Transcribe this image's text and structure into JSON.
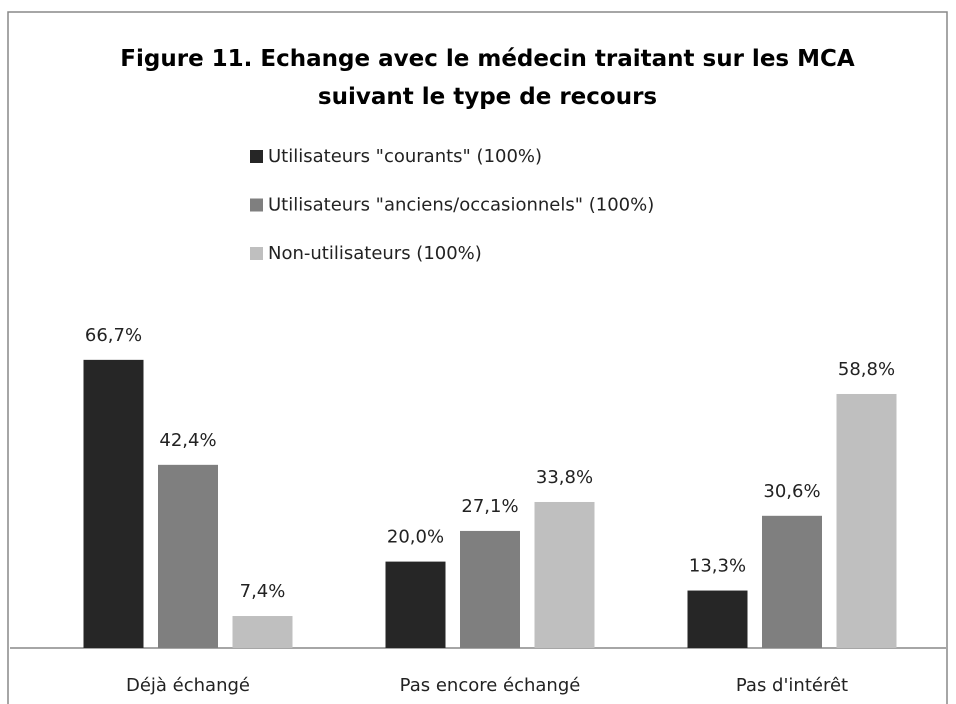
{
  "chart_data": {
    "type": "bar",
    "title": "Figure 11. Echange avec le médecin traitant sur les MCA suivant le type de recours",
    "categories": [
      "Déjà échangé",
      "Pas encore échangé",
      "Pas d'intérêt"
    ],
    "series": [
      {
        "name": "Utilisateurs \"courants\" (100%)",
        "color": "#262626",
        "values": [
          66.7,
          20.0,
          13.3
        ],
        "value_labels": [
          "66,7%",
          "20,0%",
          "13,3%"
        ]
      },
      {
        "name": "Utilisateurs \"anciens/occasionnels\" (100%)",
        "color": "#7f7f7f",
        "values": [
          42.4,
          27.1,
          30.6
        ],
        "value_labels": [
          "42,4%",
          "27,1%",
          "30,6%"
        ]
      },
      {
        "name": "Non-utilisateurs (100%)",
        "color": "#bfbfbf",
        "values": [
          7.4,
          33.8,
          58.8
        ],
        "value_labels": [
          "7,4%",
          "33,8%",
          "58,8%"
        ]
      }
    ]
  }
}
